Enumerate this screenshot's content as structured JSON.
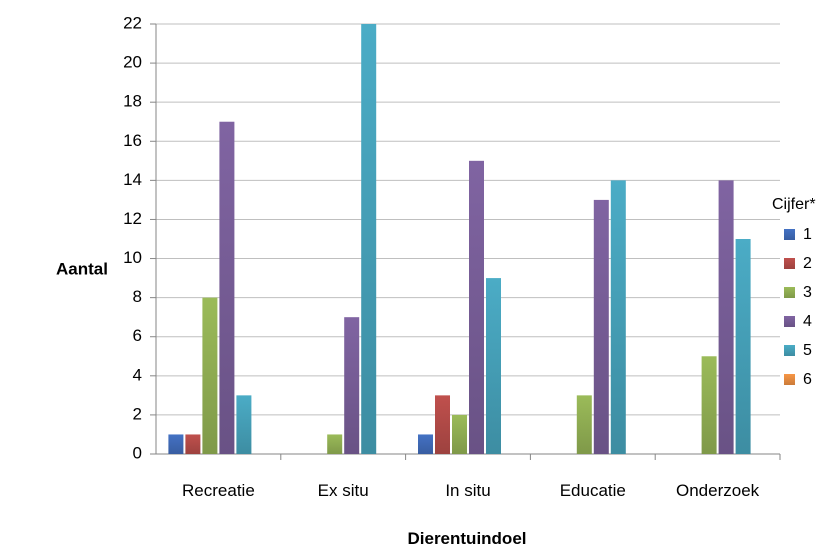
{
  "chart_data": {
    "type": "bar",
    "title": "",
    "xlabel": "Dierentuindoel",
    "ylabel": "Aantal",
    "ylim": [
      0,
      22
    ],
    "y_ticks": [
      0,
      2,
      4,
      6,
      8,
      10,
      12,
      14,
      16,
      18,
      20,
      22
    ],
    "grid": "horizontal",
    "legend_title": "Cijfer*",
    "legend_position": "right",
    "categories": [
      "Recreatie",
      "Ex situ",
      "In situ",
      "Educatie",
      "Onderzoek"
    ],
    "series": [
      {
        "name": "1",
        "color": "#4472C4",
        "values": [
          1,
          0,
          1,
          0,
          0
        ]
      },
      {
        "name": "2",
        "color": "#C0504D",
        "values": [
          1,
          0,
          3,
          0,
          0
        ]
      },
      {
        "name": "3",
        "color": "#9BBB59",
        "values": [
          8,
          1,
          2,
          3,
          5
        ]
      },
      {
        "name": "4",
        "color": "#8064A2",
        "values": [
          17,
          7,
          15,
          13,
          14
        ]
      },
      {
        "name": "5",
        "color": "#4BACC6",
        "values": [
          3,
          22,
          9,
          14,
          11
        ]
      },
      {
        "name": "6",
        "color": "#F79646",
        "values": [
          0,
          0,
          0,
          0,
          0
        ]
      }
    ]
  }
}
